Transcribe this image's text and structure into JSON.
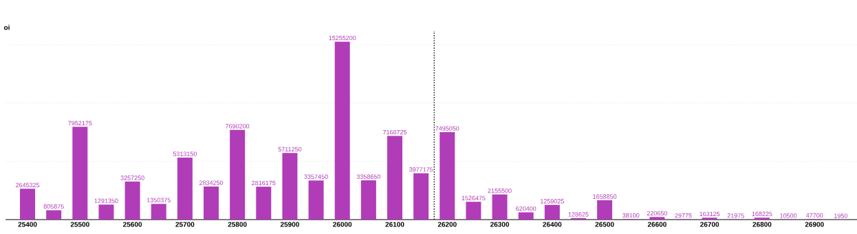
{
  "chart_data": {
    "type": "bar",
    "ylabel": "oi",
    "x": [
      25400,
      25450,
      25500,
      25550,
      25600,
      25650,
      25700,
      25750,
      25800,
      25850,
      25900,
      25950,
      26000,
      26050,
      26100,
      26150,
      26200,
      26250,
      26300,
      26350,
      26400,
      26450,
      26500,
      26550,
      26600,
      26650,
      26700,
      26750,
      26800,
      26850,
      26900,
      26950
    ],
    "values": [
      2645325,
      805875,
      7952175,
      1291350,
      3257250,
      1350375,
      5313150,
      2834250,
      7690200,
      2816175,
      5711250,
      3357450,
      15255200,
      3358650,
      7168725,
      3977175,
      7495050,
      1526475,
      2155500,
      620400,
      1259025,
      128625,
      1658850,
      38100,
      220650,
      29775,
      163125,
      21975,
      168225,
      10500,
      47700,
      1950
    ],
    "color": "#b13cb8",
    "xlim": [
      25358,
      26981
    ],
    "xticks": [
      25400,
      25500,
      25600,
      25700,
      25800,
      25900,
      26000,
      26100,
      26200,
      26300,
      26400,
      26500,
      26600,
      26700,
      26800,
      26900
    ],
    "yticks": [
      {
        "value": 5000000,
        "label": null
      },
      {
        "value": 10000000,
        "label": null
      },
      {
        "value": 15000000,
        "label": null
      }
    ],
    "tick_labels": "x",
    "grid": "y",
    "data_labels": true,
    "ref_lines": [
      {
        "axis": "x",
        "value": 26175,
        "line_style": "dotted",
        "color": "#111111"
      }
    ]
  }
}
